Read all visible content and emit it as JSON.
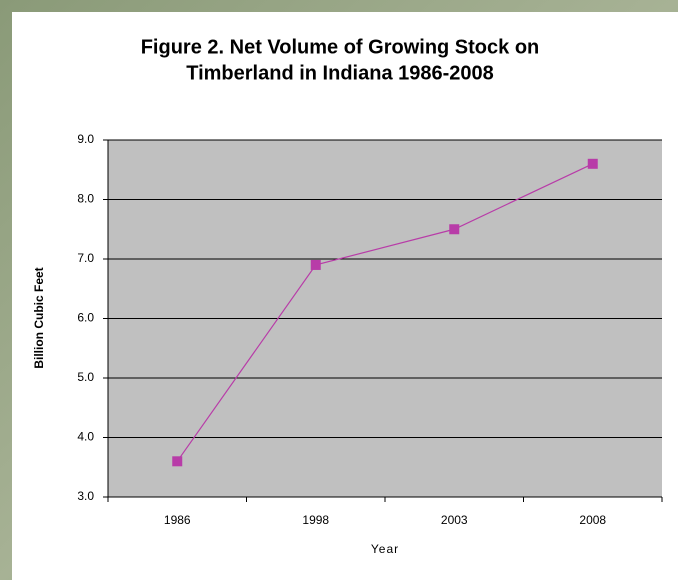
{
  "chart_data": {
    "type": "line",
    "title": [
      "Figure 2. Net Volume of Growing Stock on",
      "Timberland in Indiana 1986-2008"
    ],
    "x_label": "Year",
    "y_label": "Billion Cubic Feet",
    "categories": [
      "1986",
      "1998",
      "2003",
      "2008"
    ],
    "series": [
      {
        "values": [
          3.6,
          6.9,
          7.5,
          8.6
        ],
        "color": "#b83ca8"
      }
    ],
    "ylim": [
      3,
      9
    ],
    "yticks": [
      {
        "value": 3,
        "label": "3.0"
      },
      {
        "value": 4,
        "label": "4.0"
      },
      {
        "value": 5,
        "label": "5.0"
      },
      {
        "value": 6,
        "label": "6.0"
      },
      {
        "value": 7,
        "label": "7.0"
      },
      {
        "value": 8,
        "label": "8.0"
      },
      {
        "value": 9,
        "label": "9.0"
      }
    ],
    "grid": true
  }
}
